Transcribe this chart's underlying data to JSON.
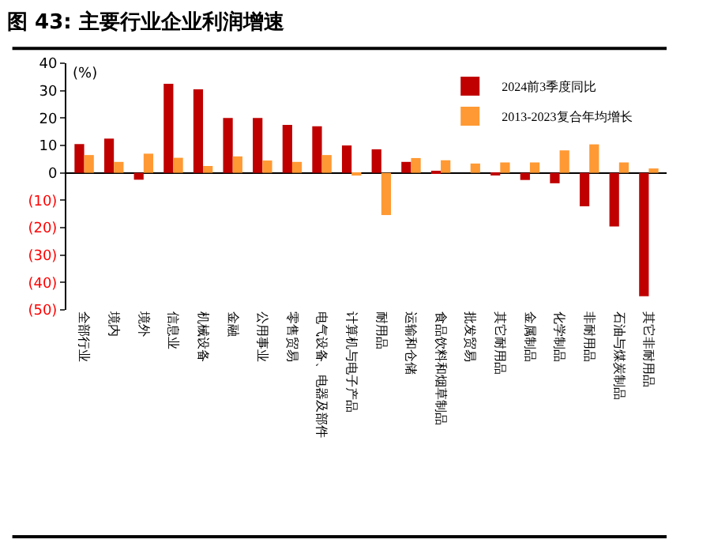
{
  "chart_data": {
    "type": "bar",
    "title": "图 43: 主要行业企业利润增速",
    "annotations": [
      "(%)"
    ],
    "categories": [
      "全部行业",
      "境内",
      "境外",
      "信息业",
      "机械设备",
      "金融",
      "公用事业",
      "零售贸易",
      "电气设备、电器及部件",
      "计算机与电子产品",
      "耐用品",
      "运输和仓储",
      "食品饮料和烟草制品",
      "批发贸易",
      "其它耐用品",
      "金属制品",
      "化学制品",
      "非耐用品",
      "石油与煤炭制品",
      "其它非耐用品"
    ],
    "series": [
      {
        "name": "2024前3季度同比",
        "color": "#c00000",
        "values": [
          10.5,
          12.5,
          -2.5,
          32.5,
          30.5,
          20,
          20,
          17.5,
          17,
          10,
          8.6,
          4,
          0.3,
          0,
          -0.5,
          -2.6,
          -3.8,
          -12.2,
          -19.6,
          -45
        ]
      },
      {
        "name": "2013-2023复合年均增长",
        "color": "#ff9933",
        "values": [
          6.5,
          4,
          7,
          5.5,
          2.5,
          6,
          4.5,
          4,
          6.5,
          -1,
          -15.4,
          5.4,
          4.6,
          3.4,
          3.8,
          3.8,
          8.2,
          10.4,
          3.8,
          1.6
        ]
      }
    ],
    "ylim": [
      -50,
      40
    ],
    "yticks": [
      40,
      30,
      20,
      10,
      0,
      {
        "value": -10,
        "label": "(10)"
      },
      {
        "value": -20,
        "label": "(20)"
      },
      {
        "value": -30,
        "label": "(30)"
      },
      {
        "value": -40,
        "label": "(40)"
      },
      {
        "value": -50,
        "label": "(50)"
      }
    ],
    "legend": "top right"
  }
}
